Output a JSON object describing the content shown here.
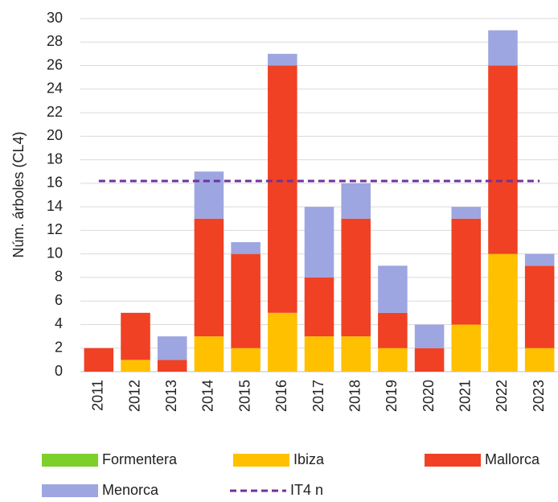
{
  "chart_data": {
    "type": "bar",
    "stacked": true,
    "ylabel": "Núm. árboles (CL4)",
    "categories": [
      "2011",
      "2012",
      "2013",
      "2014",
      "2015",
      "2016",
      "2017",
      "2018",
      "2019",
      "2020",
      "2021",
      "2022",
      "2023"
    ],
    "series": [
      {
        "name": "Formentera",
        "color": "#7dcf2a",
        "values": [
          0,
          0,
          0,
          0,
          0,
          0,
          0,
          0,
          0,
          0,
          0,
          0,
          0
        ]
      },
      {
        "name": "Ibiza",
        "color": "#ffc000",
        "values": [
          0,
          1,
          0,
          3,
          2,
          5,
          3,
          3,
          2,
          0,
          4,
          10,
          2
        ]
      },
      {
        "name": "Mallorca",
        "color": "#f04124",
        "values": [
          2,
          4,
          1,
          10,
          8,
          21,
          5,
          10,
          3,
          2,
          9,
          16,
          7
        ]
      },
      {
        "name": "Menorca",
        "color": "#9da6e0",
        "values": [
          0,
          0,
          2,
          4,
          1,
          1,
          6,
          3,
          4,
          2,
          1,
          3,
          1
        ]
      },
      {
        "name": "IT4 n",
        "color": "#7030a0",
        "type": "line",
        "dashed": true,
        "values": [
          16.2,
          16.2,
          16.2,
          16.2,
          16.2,
          16.2,
          16.2,
          16.2,
          16.2,
          16.2,
          16.2,
          16.2,
          16.2
        ]
      }
    ],
    "ylim": [
      0,
      30
    ],
    "yticks": [
      0,
      2,
      4,
      6,
      8,
      10,
      12,
      14,
      16,
      18,
      20,
      22,
      24,
      26,
      28,
      30
    ],
    "grid": true
  }
}
